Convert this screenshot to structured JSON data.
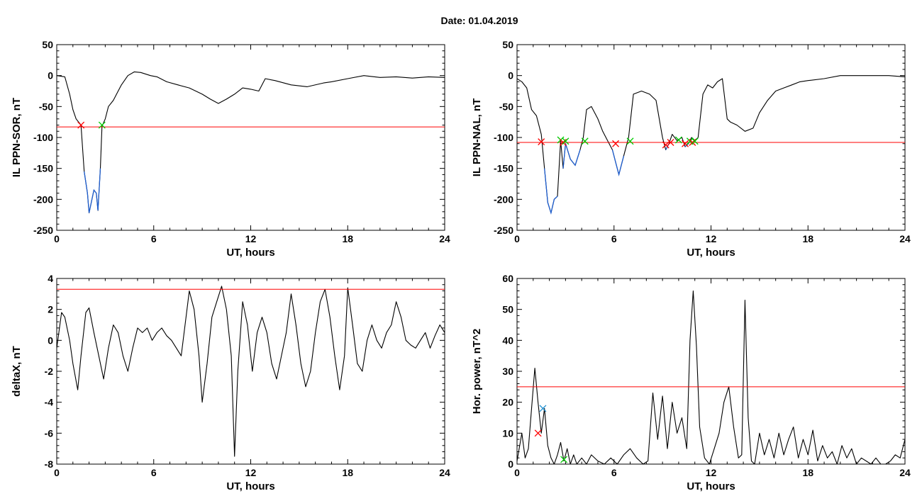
{
  "title": "Date:  01.04.2019",
  "chart_data": [
    {
      "type": "line",
      "ylabel": "IL PPN-SOR, nT",
      "xlabel": "UT, hours",
      "xlim": [
        0,
        24
      ],
      "ylim": [
        -250,
        50
      ],
      "xticks": [
        0,
        6,
        12,
        18,
        24
      ],
      "yticks": [
        50,
        0,
        -50,
        -100,
        -150,
        -200,
        -250
      ],
      "threshold": -83,
      "colors": {
        "series": "#000000",
        "highlight": "#1f5fd0",
        "threshold": "#ff0000",
        "start": "#ff0000",
        "end": "#00cc00"
      },
      "series": [
        {
          "x": [
            0,
            0.5,
            0.8,
            1.0,
            1.2,
            1.5,
            1.7,
            1.9,
            2.0,
            2.3,
            2.45,
            2.55,
            2.7,
            2.8,
            3.0,
            3.2,
            3.5,
            3.8,
            4.0,
            4.4,
            4.8,
            5.2,
            5.8,
            6.2,
            6.8,
            7.5,
            8.2,
            9.0,
            9.5,
            10.0,
            10.5,
            11.0,
            11.5,
            12.0,
            12.5,
            12.9,
            13.5,
            14.5,
            15.5,
            16.5,
            17.0,
            18.0,
            19.0,
            20.0,
            21.0,
            22.0,
            23.0,
            24.0
          ],
          "y": [
            0,
            -2,
            -30,
            -55,
            -70,
            -80,
            -155,
            -190,
            -222,
            -185,
            -190,
            -218,
            -150,
            -82,
            -70,
            -50,
            -40,
            -25,
            -15,
            0,
            6,
            5,
            0,
            -2,
            -10,
            -15,
            -20,
            -30,
            -38,
            -45,
            -38,
            -30,
            -20,
            -22,
            -25,
            -5,
            -8,
            -15,
            -18,
            -12,
            -10,
            -5,
            0,
            -3,
            -2,
            -4,
            -2,
            -3
          ]
        }
      ],
      "highlight": {
        "x_start": 1.5,
        "x_end": 2.8
      },
      "markers": [
        {
          "x": 1.5,
          "y": -80,
          "kind": "start"
        },
        {
          "x": 2.8,
          "y": -80,
          "kind": "end"
        }
      ]
    },
    {
      "type": "line",
      "ylabel": "IL PPN-NAL, nT",
      "xlabel": "UT, hours",
      "xlim": [
        0,
        24
      ],
      "ylim": [
        -250,
        50
      ],
      "xticks": [
        0,
        6,
        12,
        18,
        24
      ],
      "yticks": [
        50,
        0,
        -50,
        -100,
        -150,
        -200,
        -250
      ],
      "threshold": -108,
      "colors": {
        "series": "#000000",
        "highlight": "#1f5fd0",
        "threshold": "#ff0000",
        "start": "#ff0000",
        "end": "#00cc00"
      },
      "series": [
        {
          "x": [
            0,
            0.3,
            0.6,
            0.9,
            1.2,
            1.5,
            1.7,
            1.9,
            2.1,
            2.3,
            2.5,
            2.7,
            2.85,
            3.0,
            3.3,
            3.6,
            3.9,
            4.1,
            4.3,
            4.6,
            5.0,
            5.3,
            5.6,
            5.9,
            6.1,
            6.3,
            6.6,
            6.9,
            7.2,
            7.7,
            8.2,
            8.6,
            9.0,
            9.2,
            9.4,
            9.6,
            9.9,
            10.2,
            10.4,
            10.6,
            10.8,
            11.0,
            11.2,
            11.5,
            11.8,
            12.1,
            12.4,
            12.7,
            13.0,
            13.2,
            13.6,
            14.1,
            14.6,
            15.0,
            15.5,
            16.0,
            16.5,
            17.0,
            17.5,
            18.0,
            19.0,
            20.0,
            21.0,
            22.0,
            23.0,
            24.0
          ],
          "y": [
            -5,
            -10,
            -20,
            -55,
            -65,
            -95,
            -150,
            -205,
            -222,
            -200,
            -195,
            -105,
            -150,
            -110,
            -135,
            -145,
            -120,
            -100,
            -55,
            -50,
            -70,
            -90,
            -105,
            -120,
            -140,
            -160,
            -130,
            -100,
            -30,
            -25,
            -30,
            -40,
            -100,
            -120,
            -110,
            -95,
            -105,
            -100,
            -115,
            -110,
            -100,
            -105,
            -100,
            -30,
            -15,
            -20,
            -10,
            -5,
            -70,
            -75,
            -80,
            -90,
            -85,
            -60,
            -40,
            -25,
            -20,
            -15,
            -10,
            -8,
            -5,
            0,
            0,
            0,
            0,
            -2
          ]
        }
      ],
      "highlight": {
        "x_start": 1.5,
        "x_end": 11.2
      },
      "markers": [
        {
          "x": 1.5,
          "y": -107,
          "kind": "start"
        },
        {
          "x": 2.7,
          "y": -104,
          "kind": "end"
        },
        {
          "x": 2.85,
          "y": -108,
          "kind": "start"
        },
        {
          "x": 3.0,
          "y": -106,
          "kind": "end"
        },
        {
          "x": 4.2,
          "y": -106,
          "kind": "end"
        },
        {
          "x": 6.1,
          "y": -110,
          "kind": "start"
        },
        {
          "x": 7.0,
          "y": -106,
          "kind": "end"
        },
        {
          "x": 9.2,
          "y": -112,
          "kind": "start"
        },
        {
          "x": 9.5,
          "y": -108,
          "kind": "start"
        },
        {
          "x": 10.0,
          "y": -104,
          "kind": "end"
        },
        {
          "x": 10.4,
          "y": -110,
          "kind": "start"
        },
        {
          "x": 10.7,
          "y": -106,
          "kind": "end"
        },
        {
          "x": 10.85,
          "y": -108,
          "kind": "start"
        },
        {
          "x": 11.0,
          "y": -106,
          "kind": "end"
        }
      ]
    },
    {
      "type": "line",
      "ylabel": "deltaX, nT",
      "xlabel": "UT, hours",
      "xlim": [
        0,
        24
      ],
      "ylim": [
        -8,
        4
      ],
      "xticks": [
        0,
        6,
        12,
        18,
        24
      ],
      "yticks": [
        4,
        2,
        0,
        -2,
        -4,
        -6,
        -8
      ],
      "threshold": 3.3,
      "colors": {
        "series": "#000000",
        "threshold": "#ff0000"
      },
      "series": [
        {
          "x": [
            0,
            0.3,
            0.5,
            0.8,
            1.0,
            1.3,
            1.5,
            1.8,
            2.0,
            2.3,
            2.6,
            2.9,
            3.2,
            3.5,
            3.8,
            4.1,
            4.4,
            4.7,
            5.0,
            5.3,
            5.6,
            5.9,
            6.2,
            6.5,
            6.8,
            7.1,
            7.4,
            7.7,
            8.0,
            8.2,
            8.5,
            8.8,
            9.0,
            9.3,
            9.6,
            9.9,
            10.2,
            10.5,
            10.8,
            11.0,
            11.2,
            11.5,
            11.8,
            12.1,
            12.4,
            12.7,
            13.0,
            13.3,
            13.6,
            13.9,
            14.2,
            14.5,
            14.8,
            15.1,
            15.4,
            15.7,
            16.0,
            16.3,
            16.6,
            16.9,
            17.2,
            17.5,
            17.8,
            18.0,
            18.3,
            18.6,
            18.9,
            19.2,
            19.5,
            19.8,
            20.1,
            20.4,
            20.7,
            21.0,
            21.3,
            21.6,
            21.9,
            22.2,
            22.5,
            22.8,
            23.1,
            23.4,
            23.7,
            24.0
          ],
          "y": [
            -0.5,
            1.8,
            1.5,
            0,
            -1.5,
            -3.2,
            -1.0,
            1.8,
            2.1,
            0.5,
            -1.0,
            -2.5,
            -0.5,
            1.0,
            0.5,
            -1.0,
            -2.0,
            -0.5,
            0.8,
            0.5,
            0.8,
            0,
            0.5,
            0.8,
            0.3,
            0.0,
            -0.5,
            -1.0,
            1.5,
            3.2,
            2.0,
            -1.0,
            -4.0,
            -1.5,
            1.5,
            2.5,
            3.5,
            2.0,
            -1.0,
            -7.5,
            -2.0,
            2.5,
            1.0,
            -2.0,
            0.5,
            1.5,
            0.5,
            -1.5,
            -2.5,
            -1.0,
            0.5,
            3.0,
            1.0,
            -1.5,
            -3.0,
            -2.0,
            0.5,
            2.5,
            3.3,
            1.5,
            -1.0,
            -3.2,
            -1.0,
            3.4,
            1.0,
            -1.5,
            -2.0,
            0,
            1.0,
            0,
            -0.5,
            0.5,
            1.0,
            2.5,
            1.5,
            0,
            -0.3,
            -0.5,
            0,
            0.5,
            -0.5,
            0.3,
            1.0,
            0.5
          ]
        }
      ]
    },
    {
      "type": "line",
      "ylabel": "Hor. power, nT^2",
      "xlabel": "UT, hours",
      "xlim": [
        0,
        24
      ],
      "ylim": [
        0,
        60
      ],
      "xticks": [
        0,
        6,
        12,
        18,
        24
      ],
      "yticks": [
        60,
        50,
        40,
        30,
        20,
        10,
        0
      ],
      "threshold": 25,
      "colors": {
        "series": "#000000",
        "threshold": "#ff0000",
        "start": "#ff0000",
        "end": "#00cc00",
        "peak": "#1f8fd0"
      },
      "series": [
        {
          "x": [
            0,
            0.3,
            0.5,
            0.7,
            0.9,
            1.1,
            1.3,
            1.5,
            1.7,
            1.9,
            2.1,
            2.3,
            2.5,
            2.7,
            2.9,
            3.1,
            3.3,
            3.5,
            3.7,
            4.0,
            4.3,
            4.6,
            5.0,
            5.4,
            5.8,
            6.2,
            6.6,
            7.0,
            7.4,
            7.8,
            8.1,
            8.4,
            8.7,
            9.0,
            9.3,
            9.6,
            9.9,
            10.2,
            10.5,
            10.7,
            10.9,
            11.1,
            11.3,
            11.6,
            11.9,
            12.2,
            12.5,
            12.8,
            13.1,
            13.4,
            13.7,
            13.9,
            14.1,
            14.3,
            14.5,
            14.7,
            15.0,
            15.3,
            15.6,
            15.9,
            16.2,
            16.5,
            16.8,
            17.1,
            17.4,
            17.7,
            18.0,
            18.3,
            18.6,
            18.9,
            19.2,
            19.5,
            19.8,
            20.1,
            20.4,
            20.7,
            21.0,
            21.3,
            21.6,
            21.9,
            22.2,
            22.5,
            22.8,
            23.1,
            23.4,
            23.7,
            24.0
          ],
          "y": [
            1,
            10,
            2,
            5,
            18,
            31,
            20,
            10,
            18,
            6,
            2,
            0,
            3,
            7,
            1,
            5,
            0,
            3,
            0,
            2,
            0,
            3,
            1,
            0,
            2,
            0,
            3,
            5,
            2,
            0,
            1,
            23,
            8,
            22,
            5,
            20,
            10,
            15,
            5,
            40,
            56,
            38,
            12,
            2,
            0,
            5,
            10,
            20,
            25,
            12,
            2,
            3,
            53,
            15,
            1,
            0,
            10,
            3,
            8,
            2,
            10,
            3,
            8,
            12,
            2,
            8,
            3,
            11,
            1,
            6,
            2,
            4,
            0,
            6,
            2,
            5,
            0,
            2,
            1,
            0,
            2,
            0,
            0,
            1,
            3,
            2,
            8
          ]
        }
      ],
      "markers": [
        {
          "x": 1.3,
          "y": 10,
          "kind": "start"
        },
        {
          "x": 1.6,
          "y": 18,
          "kind": "peak"
        },
        {
          "x": 2.9,
          "y": 1.5,
          "kind": "end"
        }
      ]
    }
  ]
}
